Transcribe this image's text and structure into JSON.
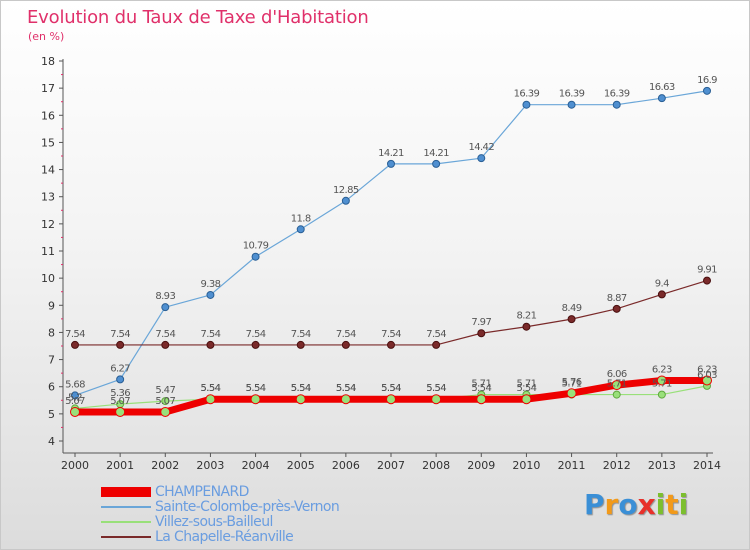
{
  "header": {
    "title": "Evolution du Taux de Taxe d'Habitation",
    "unit": "(en %)"
  },
  "logo": {
    "text": "Proxiti",
    "colors": [
      "#3a8fd6",
      "#f29a1a",
      "#3a8fd6",
      "#e8302a",
      "#7cbf2e",
      "#f29a1a",
      "#7cbf2e"
    ]
  },
  "chart_data": {
    "type": "line",
    "title": "Evolution du Taux de Taxe d'Habitation",
    "ylabel": "(en %)",
    "xlabel": "",
    "ylim": [
      4,
      18
    ],
    "yticks": [
      "4",
      "5",
      "6",
      "7",
      "8",
      "9",
      "10",
      "11",
      "12",
      "13",
      "14",
      "15",
      "16",
      "17",
      "18"
    ],
    "grid": false,
    "legend_position": "bottom-left",
    "x": [
      "2000",
      "2001",
      "2002",
      "2003",
      "2004",
      "2005",
      "2006",
      "2007",
      "2008",
      "2009",
      "2010",
      "2011",
      "2012",
      "2013",
      "2014"
    ],
    "series": [
      {
        "name": "CHAMPENARD",
        "color": "#ee0000",
        "values": [
          5.07,
          5.07,
          5.07,
          5.54,
          5.54,
          5.54,
          5.54,
          5.54,
          5.54,
          5.54,
          5.54,
          5.76,
          6.06,
          6.23,
          6.23
        ],
        "labels": [
          "5.07",
          "5.07",
          "5.07",
          "5.54",
          "5.54",
          "5.54",
          "5.54",
          "5.54",
          "5.54",
          "5.54",
          "5.54",
          "5.76",
          "6.06",
          "6.23",
          "6.23"
        ]
      },
      {
        "name": "Sainte-Colombe-près-Vernon",
        "color": "#6aa6d8",
        "values": [
          5.68,
          6.27,
          8.93,
          9.38,
          10.79,
          11.8,
          12.85,
          14.21,
          14.21,
          14.42,
          16.39,
          16.39,
          16.39,
          16.63,
          16.9
        ],
        "labels": [
          "5.68",
          "6.27",
          "8.93",
          "9.38",
          "10.79",
          "11.8",
          "12.85",
          "14.21",
          "14.21",
          "14.42",
          "16.39",
          "16.39",
          "16.39",
          "16.63",
          "16.9"
        ]
      },
      {
        "name": "Villez-sous-Bailleul",
        "color": "#99e07a",
        "values": [
          5.2,
          5.36,
          5.47,
          5.54,
          5.54,
          5.54,
          5.54,
          5.54,
          5.54,
          5.71,
          5.71,
          5.71,
          5.71,
          5.71,
          6.03
        ],
        "labels": [
          "5.2",
          "5.36",
          "5.47",
          "5.54",
          "5.54",
          "5.54",
          "5.54",
          "5.54",
          "5.54",
          "5.71",
          "5.71",
          "5.71",
          "5.71",
          "5.71",
          "6.03"
        ]
      },
      {
        "name": "La Chapelle-Réanville",
        "color": "#7a2a2a",
        "values": [
          7.54,
          7.54,
          7.54,
          7.54,
          7.54,
          7.54,
          7.54,
          7.54,
          7.54,
          7.97,
          8.21,
          8.49,
          8.87,
          9.4,
          9.91
        ],
        "labels": [
          "7.54",
          "7.54",
          "7.54",
          "7.54",
          "7.54",
          "7.54",
          "7.54",
          "7.54",
          "7.54",
          "7.97",
          "8.21",
          "8.49",
          "8.87",
          "9.4",
          "9.91"
        ]
      }
    ]
  }
}
